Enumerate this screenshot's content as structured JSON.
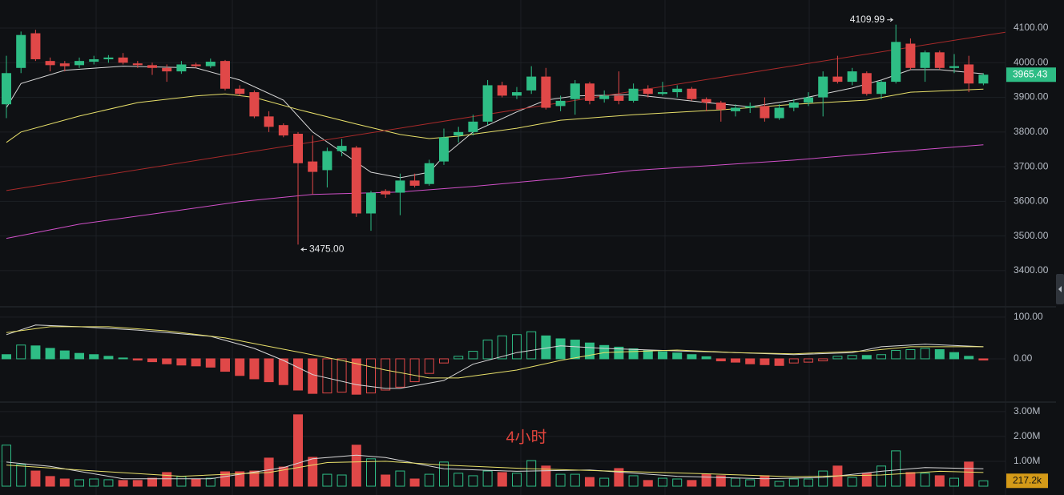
{
  "chart_data": [
    {
      "type": "candlestick",
      "colors": {
        "up": "#2ebd85",
        "down": "#e04848"
      },
      "open": [
        3880,
        3985,
        4085,
        4005,
        3998,
        3993,
        4003,
        4010,
        4015,
        3998,
        3993,
        3985,
        3975,
        3995,
        3990,
        4005,
        3925,
        3915,
        3845,
        3820,
        3795,
        3715,
        3690,
        3745,
        3755,
        3565,
        3630,
        3625,
        3660,
        3650,
        3715,
        3790,
        3800,
        3830,
        3935,
        3905,
        3920,
        3960,
        3875,
        3895,
        3940,
        3895,
        3905,
        3890,
        3925,
        3910,
        3915,
        3925,
        3895,
        3885,
        3860,
        3870,
        3875,
        3840,
        3870,
        3885,
        3900,
        3960,
        3945,
        3970,
        3910,
        3945,
        4055,
        3985,
        4030,
        3985,
        3995,
        3940
      ],
      "high": [
        4020,
        4090,
        4095,
        4015,
        4005,
        4015,
        4020,
        4022,
        4028,
        4005,
        4000,
        3995,
        4005,
        4000,
        4012,
        4008,
        3935,
        3920,
        3860,
        3825,
        3800,
        3790,
        3755,
        3780,
        3760,
        3630,
        3635,
        3680,
        3680,
        3720,
        3810,
        3815,
        3850,
        3950,
        3945,
        3930,
        3990,
        3985,
        3905,
        3950,
        3945,
        3920,
        3975,
        3940,
        3935,
        3945,
        3935,
        3930,
        3900,
        3890,
        3880,
        3885,
        3900,
        3880,
        3895,
        3915,
        3975,
        4020,
        3985,
        3975,
        3950,
        4109.99,
        4070,
        4035,
        4035,
        4025,
        4020,
        3970
      ],
      "low": [
        3840,
        3970,
        4005,
        3975,
        3975,
        3985,
        3995,
        4000,
        3995,
        3985,
        3965,
        3945,
        3968,
        3985,
        3985,
        3920,
        3905,
        3840,
        3800,
        3785,
        3475,
        3620,
        3640,
        3730,
        3555,
        3515,
        3610,
        3560,
        3640,
        3645,
        3705,
        3770,
        3790,
        3820,
        3900,
        3895,
        3910,
        3865,
        3860,
        3850,
        3880,
        3885,
        3880,
        3885,
        3900,
        3905,
        3900,
        3890,
        3860,
        3830,
        3845,
        3855,
        3830,
        3835,
        3860,
        3875,
        3845,
        3940,
        3935,
        3905,
        3895,
        3940,
        3980,
        3945,
        3980,
        3970,
        3915,
        3935
      ],
      "close": [
        3970,
        4080,
        4010,
        3993,
        3990,
        4005,
        4010,
        4015,
        4000,
        3993,
        3985,
        3975,
        3995,
        3990,
        4003,
        3925,
        3910,
        3845,
        3815,
        3790,
        3710,
        3685,
        3745,
        3760,
        3565,
        3625,
        3620,
        3660,
        3645,
        3710,
        3785,
        3800,
        3830,
        3935,
        3905,
        3915,
        3960,
        3870,
        3890,
        3940,
        3890,
        3905,
        3890,
        3925,
        3910,
        3915,
        3925,
        3895,
        3885,
        3865,
        3870,
        3875,
        3840,
        3870,
        3885,
        3900,
        3960,
        3945,
        3975,
        3910,
        3945,
        4060,
        3985,
        4030,
        3985,
        3990,
        3940,
        3965.43
      ],
      "last_label": "3965.43",
      "lines": [
        {
          "color": "#d8d8d8",
          "x": [
            0,
            1,
            4,
            8,
            13,
            16,
            19,
            21,
            23,
            25,
            27,
            29,
            30,
            32,
            35,
            37,
            39,
            43,
            48,
            51,
            54,
            58,
            60,
            62,
            64,
            67
          ],
          "values": [
            3870,
            3940,
            3978,
            3990,
            3985,
            3950,
            3892,
            3800,
            3742,
            3684,
            3668,
            3684,
            3730,
            3800,
            3858,
            3892,
            3904,
            3908,
            3885,
            3873,
            3892,
            3927,
            3950,
            3980,
            3980,
            3968
          ]
        },
        {
          "color": "#e8e06a",
          "x": [
            0,
            1,
            5,
            9,
            13,
            15,
            17,
            20,
            24,
            27,
            29,
            31,
            35,
            38,
            43,
            49,
            54,
            59,
            62,
            67
          ],
          "values": [
            3770,
            3800,
            3846,
            3885,
            3904,
            3910,
            3900,
            3865,
            3823,
            3793,
            3781,
            3788,
            3811,
            3834,
            3850,
            3864,
            3880,
            3892,
            3915,
            3924
          ]
        },
        {
          "color": "#d050c8",
          "x": [
            0,
            5,
            11,
            16,
            21,
            27,
            32,
            38,
            43,
            49,
            54,
            60,
            67
          ],
          "values": [
            3493,
            3534,
            3569,
            3599,
            3620,
            3627,
            3643,
            3666,
            3689,
            3705,
            3719,
            3740,
            3763
          ]
        },
        {
          "color": "#a82a2a",
          "x": [
            0,
            68.5
          ],
          "values": [
            3631,
            4088
          ]
        }
      ],
      "annotations": [
        {
          "text": "4109.99",
          "x": 61,
          "y": 4109.99
        },
        {
          "text": "3475.00",
          "x": 20,
          "y": 3475
        }
      ],
      "ylim": [
        3298,
        4181
      ],
      "yticks": [
        {
          "value": 3400,
          "label": "3400.00"
        },
        {
          "value": 3500,
          "label": "3500.00"
        },
        {
          "value": 3600,
          "label": "3600.00"
        },
        {
          "value": 3700,
          "label": "3700.00"
        },
        {
          "value": 3800,
          "label": "3800.00"
        },
        {
          "value": 3900,
          "label": "3900.00"
        },
        {
          "value": 4000,
          "label": "4000.00"
        },
        {
          "value": 4100,
          "label": "4100.00"
        }
      ]
    },
    {
      "type": "histogram",
      "values": [
        10,
        33,
        31,
        25,
        19,
        13,
        10,
        6,
        2,
        -3,
        -7,
        -12,
        -15,
        -17,
        -20,
        -30,
        -40,
        -48,
        -55,
        -62,
        -75,
        -83,
        -82,
        -80,
        -85,
        -82,
        -75,
        -68,
        -55,
        -35,
        -10,
        6,
        18,
        45,
        55,
        58,
        65,
        55,
        48,
        45,
        38,
        32,
        28,
        24,
        20,
        17,
        14,
        10,
        5,
        -5,
        -8,
        -12,
        -14,
        -16,
        -10,
        -8,
        -5,
        6,
        8,
        8,
        10,
        20,
        22,
        25,
        22,
        15,
        6,
        -3
      ],
      "lines": [
        {
          "color": "#d8d8d8",
          "x": [
            0,
            2,
            5,
            9,
            14,
            17,
            19,
            21,
            24,
            26,
            27,
            30,
            32,
            35,
            38,
            41,
            46,
            50,
            54,
            58,
            60,
            63,
            67
          ],
          "values": [
            58,
            81,
            77,
            69,
            54,
            25,
            -4,
            -38,
            -62,
            -71,
            -71,
            -52,
            -13,
            15,
            31,
            25,
            19,
            15,
            10,
            15,
            29,
            35,
            29
          ]
        },
        {
          "color": "#e8e06a",
          "x": [
            0,
            3,
            7,
            11,
            15,
            19,
            23,
            26,
            29,
            31,
            35,
            38,
            41,
            46,
            50,
            54,
            59,
            62,
            67
          ],
          "values": [
            63,
            77,
            77,
            67,
            50,
            23,
            -4,
            -27,
            -46,
            -46,
            -27,
            -4,
            15,
            21,
            15,
            12,
            19,
            29,
            29
          ]
        }
      ],
      "ylim": [
        -100,
        121
      ],
      "yticks": [
        {
          "value": 0,
          "label": "0.00"
        },
        {
          "value": 100,
          "label": "100.00"
        }
      ]
    },
    {
      "type": "volume",
      "values": [
        1.65,
        0.87,
        0.61,
        0.39,
        0.29,
        0.26,
        0.29,
        0.26,
        0.23,
        0.23,
        0.32,
        0.55,
        0.39,
        0.29,
        0.32,
        0.58,
        0.58,
        0.61,
        1.13,
        0.77,
        2.87,
        1.16,
        0.48,
        0.45,
        1.65,
        1.1,
        0.45,
        0.61,
        0.29,
        0.48,
        0.97,
        0.52,
        0.42,
        0.61,
        0.55,
        0.52,
        1.03,
        0.81,
        0.48,
        0.48,
        0.35,
        0.32,
        0.71,
        0.42,
        0.23,
        0.32,
        0.29,
        0.23,
        0.48,
        0.42,
        0.32,
        0.26,
        0.42,
        0.19,
        0.29,
        0.29,
        0.61,
        0.81,
        0.35,
        0.52,
        0.81,
        1.42,
        0.55,
        0.52,
        0.42,
        0.32,
        0.97,
        0.2172
      ],
      "last_label": "217.2k",
      "lines": [
        {
          "color": "#d8d8d8",
          "x": [
            0,
            3,
            8,
            14,
            19,
            21,
            24,
            26,
            30,
            35,
            40,
            46,
            52,
            56,
            60,
            63,
            67
          ],
          "values": [
            0.97,
            0.8,
            0.3,
            0.3,
            0.75,
            1.1,
            1.25,
            1.15,
            0.7,
            0.6,
            0.65,
            0.4,
            0.3,
            0.35,
            0.6,
            0.75,
            0.7
          ]
        },
        {
          "color": "#e8e06a",
          "x": [
            0,
            5,
            12,
            18,
            22,
            26,
            30,
            36,
            42,
            48,
            54,
            60,
            64,
            67
          ],
          "values": [
            0.85,
            0.65,
            0.4,
            0.55,
            0.95,
            1.0,
            0.85,
            0.7,
            0.6,
            0.5,
            0.38,
            0.45,
            0.6,
            0.55
          ]
        }
      ],
      "ylim": [
        0,
        3.3
      ],
      "yticks": [
        {
          "value": 1,
          "label": "1.00M"
        },
        {
          "value": 2,
          "label": "2.00M"
        },
        {
          "value": 3,
          "label": "3.00M"
        }
      ]
    }
  ],
  "watermark": "4小时"
}
